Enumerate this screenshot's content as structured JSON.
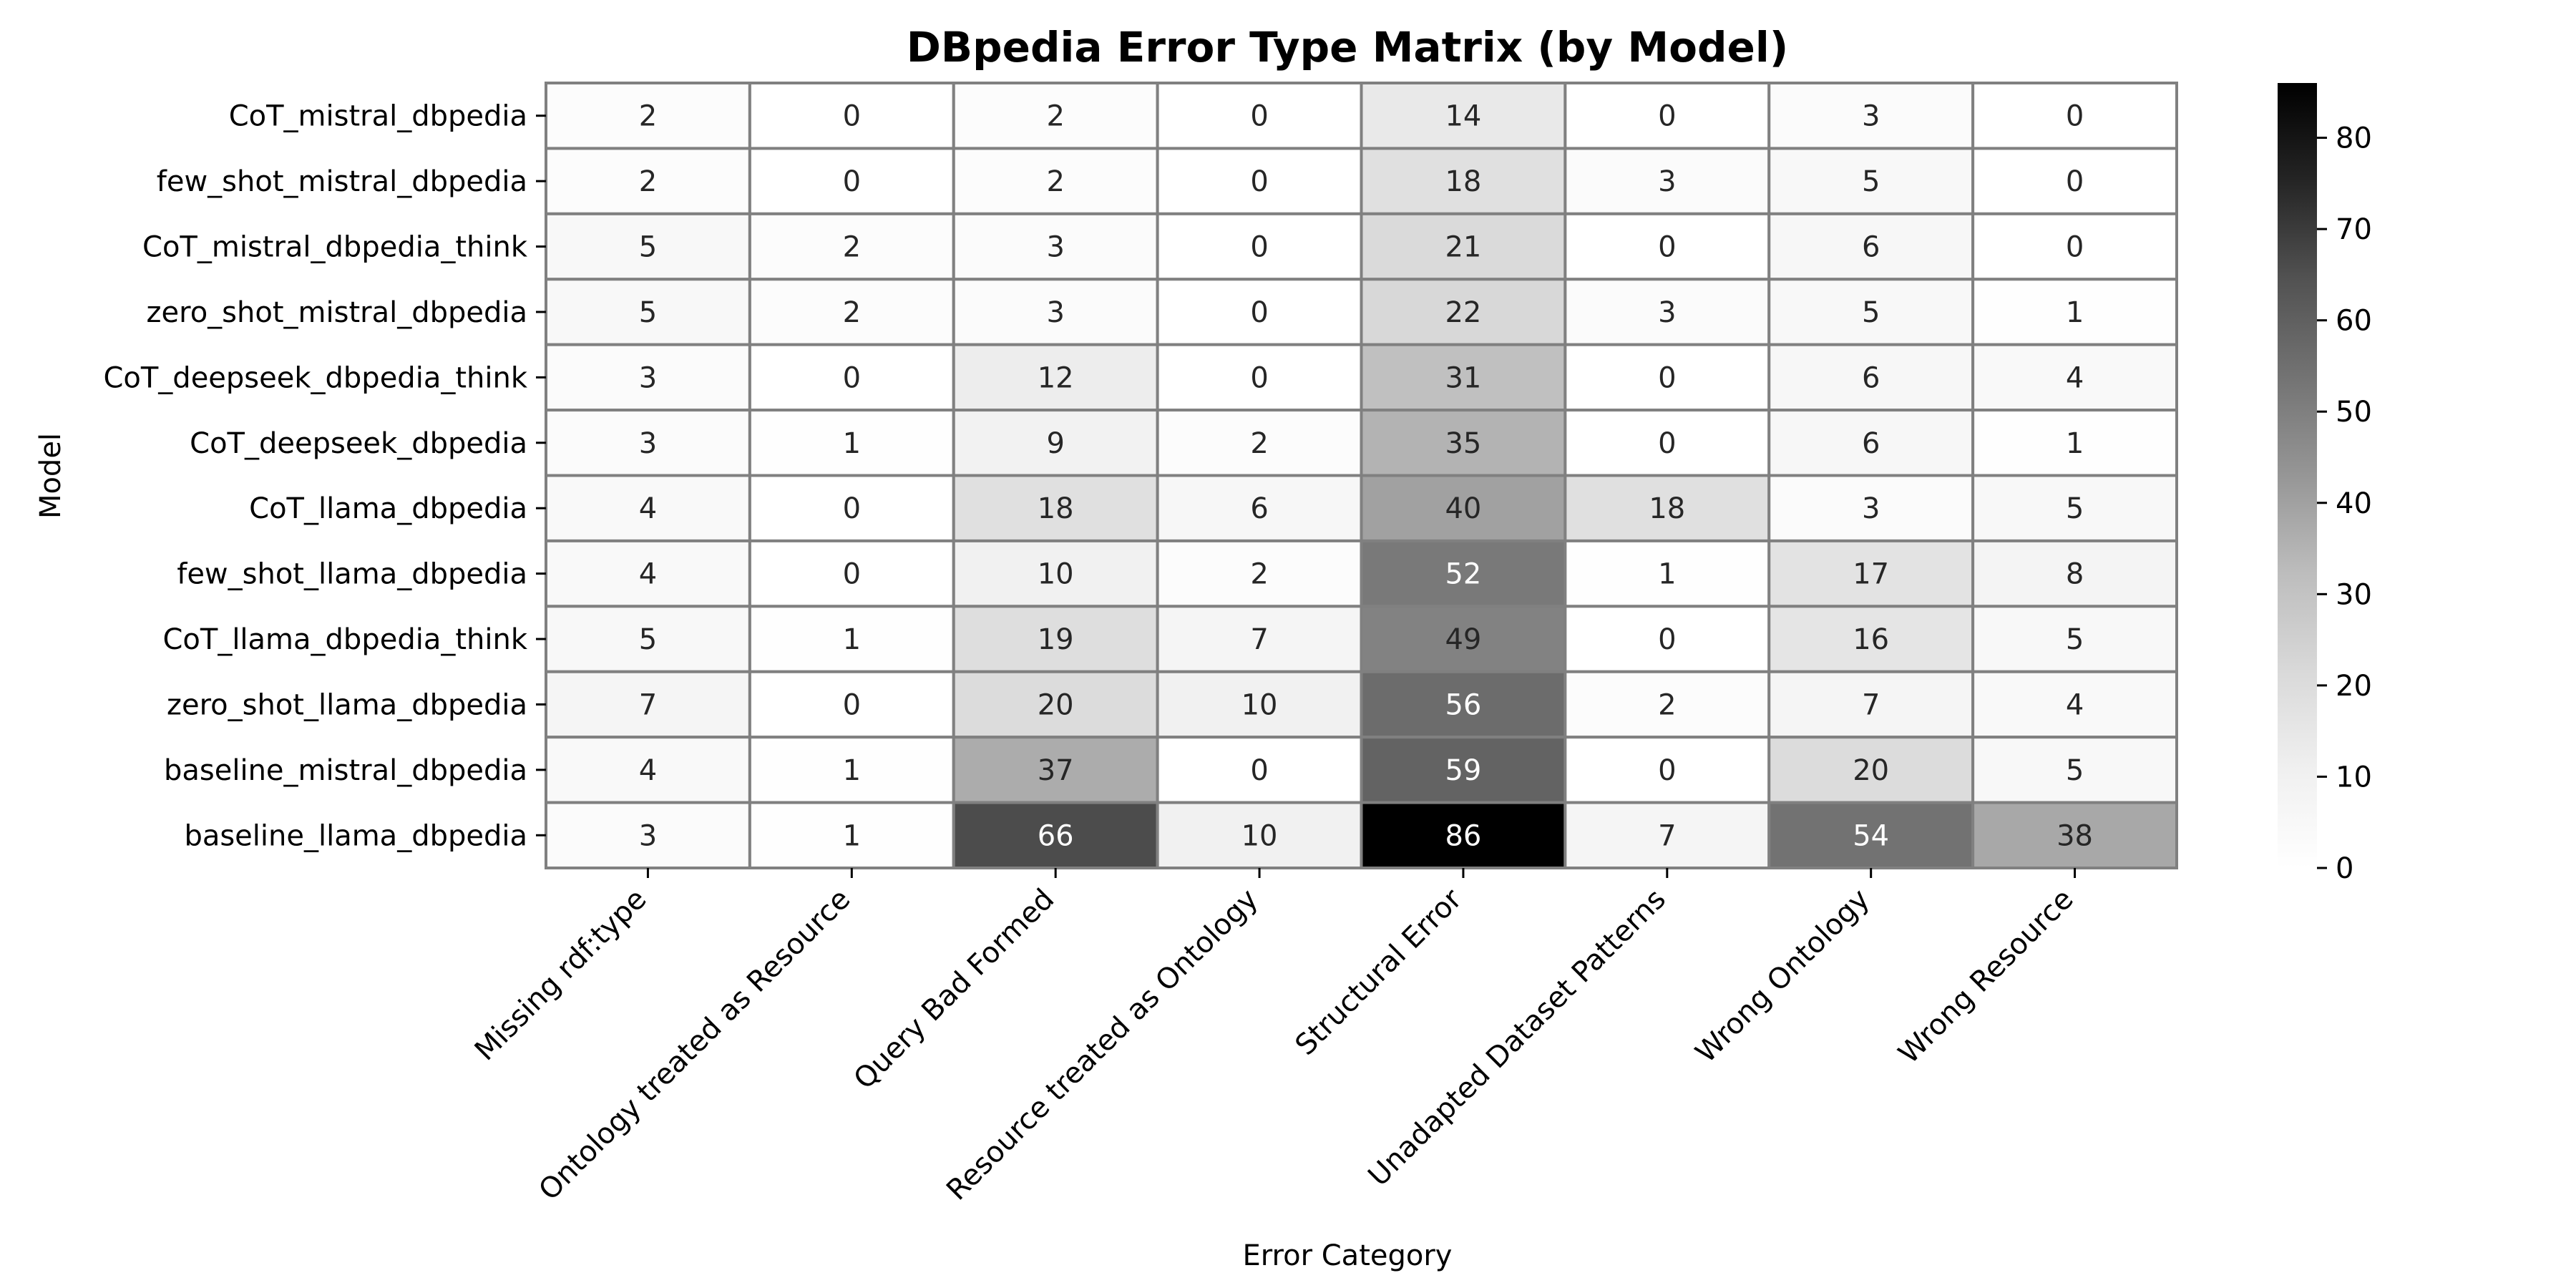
{
  "chart_data": {
    "type": "heatmap",
    "title": "DBpedia Error Type Matrix (by Model)",
    "xlabel": "Error Category",
    "ylabel": "Model",
    "columns": [
      "Missing rdf:type",
      "Ontology treated as Resource",
      "Query Bad Formed",
      "Resource treated as Ontology",
      "Structural Error",
      "Unadapted Dataset Patterns",
      "Wrong Ontology",
      "Wrong Resource"
    ],
    "rows": [
      "CoT_mistral_dbpedia",
      "few_shot_mistral_dbpedia",
      "CoT_mistral_dbpedia_think",
      "zero_shot_mistral_dbpedia",
      "CoT_deepseek_dbpedia_think",
      "CoT_deepseek_dbpedia",
      "CoT_llama_dbpedia",
      "few_shot_llama_dbpedia",
      "CoT_llama_dbpedia_think",
      "zero_shot_llama_dbpedia",
      "baseline_mistral_dbpedia",
      "baseline_llama_dbpedia"
    ],
    "values": [
      [
        2,
        0,
        2,
        0,
        14,
        0,
        3,
        0
      ],
      [
        2,
        0,
        2,
        0,
        18,
        3,
        5,
        0
      ],
      [
        5,
        2,
        3,
        0,
        21,
        0,
        6,
        0
      ],
      [
        5,
        2,
        3,
        0,
        22,
        3,
        5,
        1
      ],
      [
        3,
        0,
        12,
        0,
        31,
        0,
        6,
        4
      ],
      [
        3,
        1,
        9,
        2,
        35,
        0,
        6,
        1
      ],
      [
        4,
        0,
        18,
        6,
        40,
        18,
        3,
        5
      ],
      [
        4,
        0,
        10,
        2,
        52,
        1,
        17,
        8
      ],
      [
        5,
        1,
        19,
        7,
        49,
        0,
        16,
        5
      ],
      [
        7,
        0,
        20,
        10,
        56,
        2,
        7,
        4
      ],
      [
        4,
        1,
        37,
        0,
        59,
        0,
        20,
        5
      ],
      [
        3,
        1,
        66,
        10,
        86,
        7,
        54,
        38
      ]
    ],
    "colormap": "Greys",
    "vmin": 0,
    "vmax": 86,
    "colorbar_ticks": [
      0,
      10,
      20,
      30,
      40,
      50,
      60,
      70,
      80
    ],
    "grid": false
  }
}
